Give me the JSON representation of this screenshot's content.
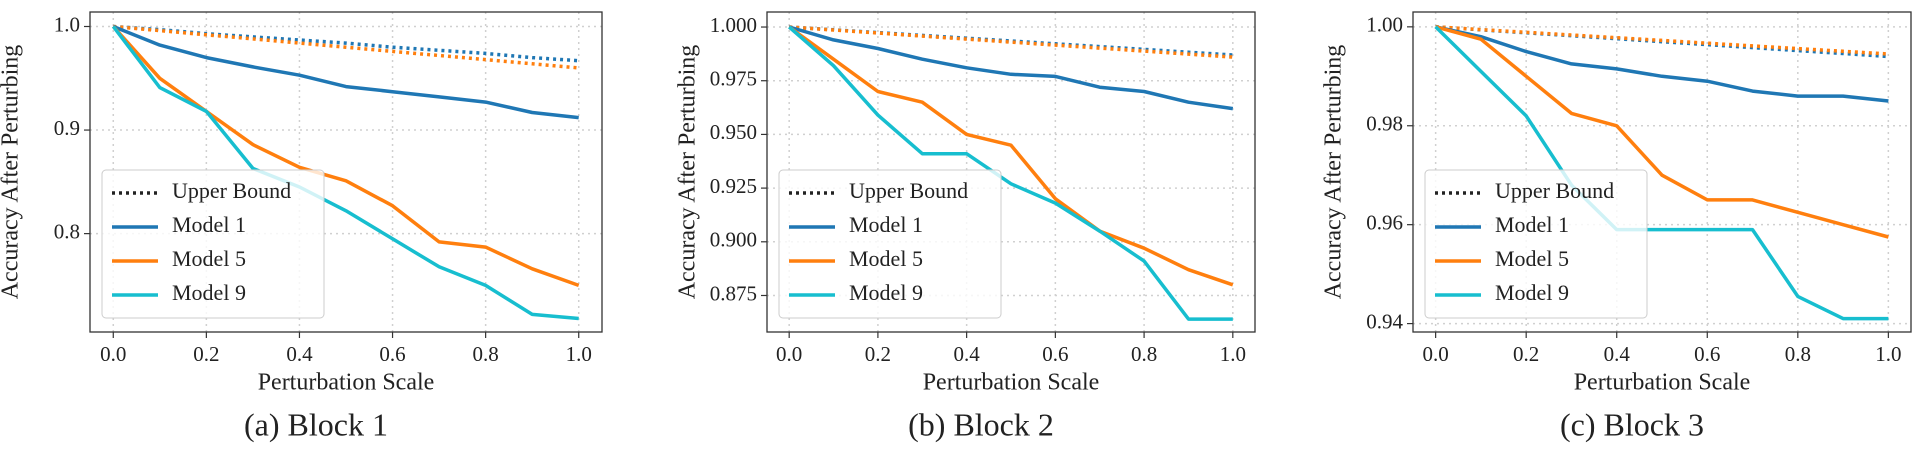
{
  "chart_data": [
    {
      "type": "line",
      "caption": "(a) Block 1",
      "xlabel": "Perturbation Scale",
      "ylabel": "Accuracy After Perturbing",
      "x": [
        0,
        0.1,
        0.2,
        0.3,
        0.4,
        0.5,
        0.6,
        0.7,
        0.8,
        0.9,
        1
      ],
      "xlim": [
        -0.05,
        1.05
      ],
      "xticks": [
        {
          "value": 0,
          "label": "0.0"
        },
        0.2,
        0.4,
        0.6,
        0.8,
        {
          "value": 1,
          "label": "1.0"
        }
      ],
      "ylim": [
        0.705,
        1.014
      ],
      "yticks": [
        0.8,
        0.9,
        {
          "value": 1,
          "label": "1.0"
        }
      ],
      "grid": true,
      "legend": "lower left",
      "bound_name": "Upper Bound",
      "bound_color": "#222222",
      "series": [
        {
          "name": "Model 1",
          "color": "#1f77b4",
          "values": [
            1,
            0.982,
            0.97,
            0.961,
            0.953,
            0.942,
            0.937,
            0.932,
            0.927,
            0.917,
            0.912
          ],
          "bound": [
            1,
            0.997,
            0.993,
            0.99,
            0.987,
            0.984,
            0.98,
            0.977,
            0.974,
            0.97,
            0.967
          ]
        },
        {
          "name": "Model 5",
          "color": "#ff7f0e",
          "values": [
            1,
            0.95,
            0.918,
            0.886,
            0.864,
            0.851,
            0.827,
            0.792,
            0.787,
            0.766,
            0.75
          ],
          "bound": [
            1,
            0.996,
            0.992,
            0.988,
            0.984,
            0.98,
            0.976,
            0.972,
            0.968,
            0.964,
            0.96
          ]
        },
        {
          "name": "Model 9",
          "color": "#17becf",
          "values": [
            1,
            0.941,
            0.918,
            0.863,
            0.845,
            0.822,
            0.795,
            0.768,
            0.75,
            0.722,
            0.718
          ]
        }
      ]
    },
    {
      "type": "line",
      "caption": "(b) Block 2",
      "xlabel": "Perturbation Scale",
      "ylabel": "Accuracy After Perturbing",
      "x": [
        0,
        0.1,
        0.2,
        0.3,
        0.4,
        0.5,
        0.6,
        0.7,
        0.8,
        0.9,
        1
      ],
      "xlim": [
        -0.05,
        1.05
      ],
      "xticks": [
        {
          "value": 0,
          "label": "0.0"
        },
        0.2,
        0.4,
        0.6,
        0.8,
        {
          "value": 1,
          "label": "1.0"
        }
      ],
      "ylim": [
        0.858,
        1.007
      ],
      "yticks": [
        0.875,
        {
          "value": 0.9,
          "label": "0.900"
        },
        0.925,
        {
          "value": 0.95,
          "label": "0.950"
        },
        0.975,
        {
          "value": 1,
          "label": "1.000"
        }
      ],
      "grid": true,
      "legend": "lower left",
      "bound_name": "Upper Bound",
      "bound_color": "#222222",
      "series": [
        {
          "name": "Model 1",
          "color": "#1f77b4",
          "values": [
            1,
            0.994,
            0.99,
            0.985,
            0.981,
            0.978,
            0.977,
            0.972,
            0.97,
            0.965,
            0.962
          ],
          "bound": [
            1,
            0.9987,
            0.9974,
            0.9961,
            0.9948,
            0.9935,
            0.9922,
            0.9909,
            0.9896,
            0.9883,
            0.987
          ]
        },
        {
          "name": "Model 5",
          "color": "#ff7f0e",
          "values": [
            1,
            0.985,
            0.97,
            0.965,
            0.95,
            0.945,
            0.92,
            0.905,
            0.897,
            0.887,
            0.88
          ],
          "bound": [
            1,
            0.9986,
            0.9972,
            0.9958,
            0.9944,
            0.993,
            0.9916,
            0.9902,
            0.9888,
            0.9874,
            0.986
          ]
        },
        {
          "name": "Model 9",
          "color": "#17becf",
          "values": [
            1,
            0.982,
            0.959,
            0.941,
            0.941,
            0.927,
            0.918,
            0.905,
            0.891,
            0.864,
            0.864
          ]
        }
      ]
    },
    {
      "type": "line",
      "caption": "(c) Block 3",
      "xlabel": "Perturbation Scale",
      "ylabel": "Accuracy After Perturbing",
      "x": [
        0,
        0.1,
        0.2,
        0.3,
        0.4,
        0.5,
        0.6,
        0.7,
        0.8,
        0.9,
        1
      ],
      "xlim": [
        -0.05,
        1.05
      ],
      "xticks": [
        {
          "value": 0,
          "label": "0.0"
        },
        0.2,
        0.4,
        0.6,
        0.8,
        {
          "value": 1,
          "label": "1.0"
        }
      ],
      "ylim": [
        0.9383,
        1.003
      ],
      "yticks": [
        0.94,
        0.96,
        0.98,
        {
          "value": 1,
          "label": "1.00"
        }
      ],
      "grid": true,
      "legend": "lower left",
      "bound_name": "Upper Bound",
      "bound_color": "#222222",
      "series": [
        {
          "name": "Model 1",
          "color": "#1f77b4",
          "values": [
            1,
            0.998,
            0.995,
            0.9925,
            0.9915,
            0.99,
            0.989,
            0.987,
            0.986,
            0.986,
            0.985
          ],
          "bound": [
            1,
            0.9994,
            0.9988,
            0.9982,
            0.9976,
            0.997,
            0.9964,
            0.9958,
            0.9952,
            0.9946,
            0.994
          ]
        },
        {
          "name": "Model 5",
          "color": "#ff7f0e",
          "values": [
            1,
            0.9975,
            0.99,
            0.9825,
            0.98,
            0.97,
            0.965,
            0.965,
            0.9625,
            0.96,
            0.9575
          ],
          "bound": [
            1,
            0.99945,
            0.9989,
            0.99835,
            0.9978,
            0.99725,
            0.9967,
            0.99615,
            0.9956,
            0.99505,
            0.9945
          ]
        },
        {
          "name": "Model 9",
          "color": "#17becf",
          "values": [
            1,
            0.991,
            0.982,
            0.968,
            0.959,
            0.959,
            0.959,
            0.959,
            0.9455,
            0.941,
            0.941
          ]
        }
      ]
    }
  ]
}
